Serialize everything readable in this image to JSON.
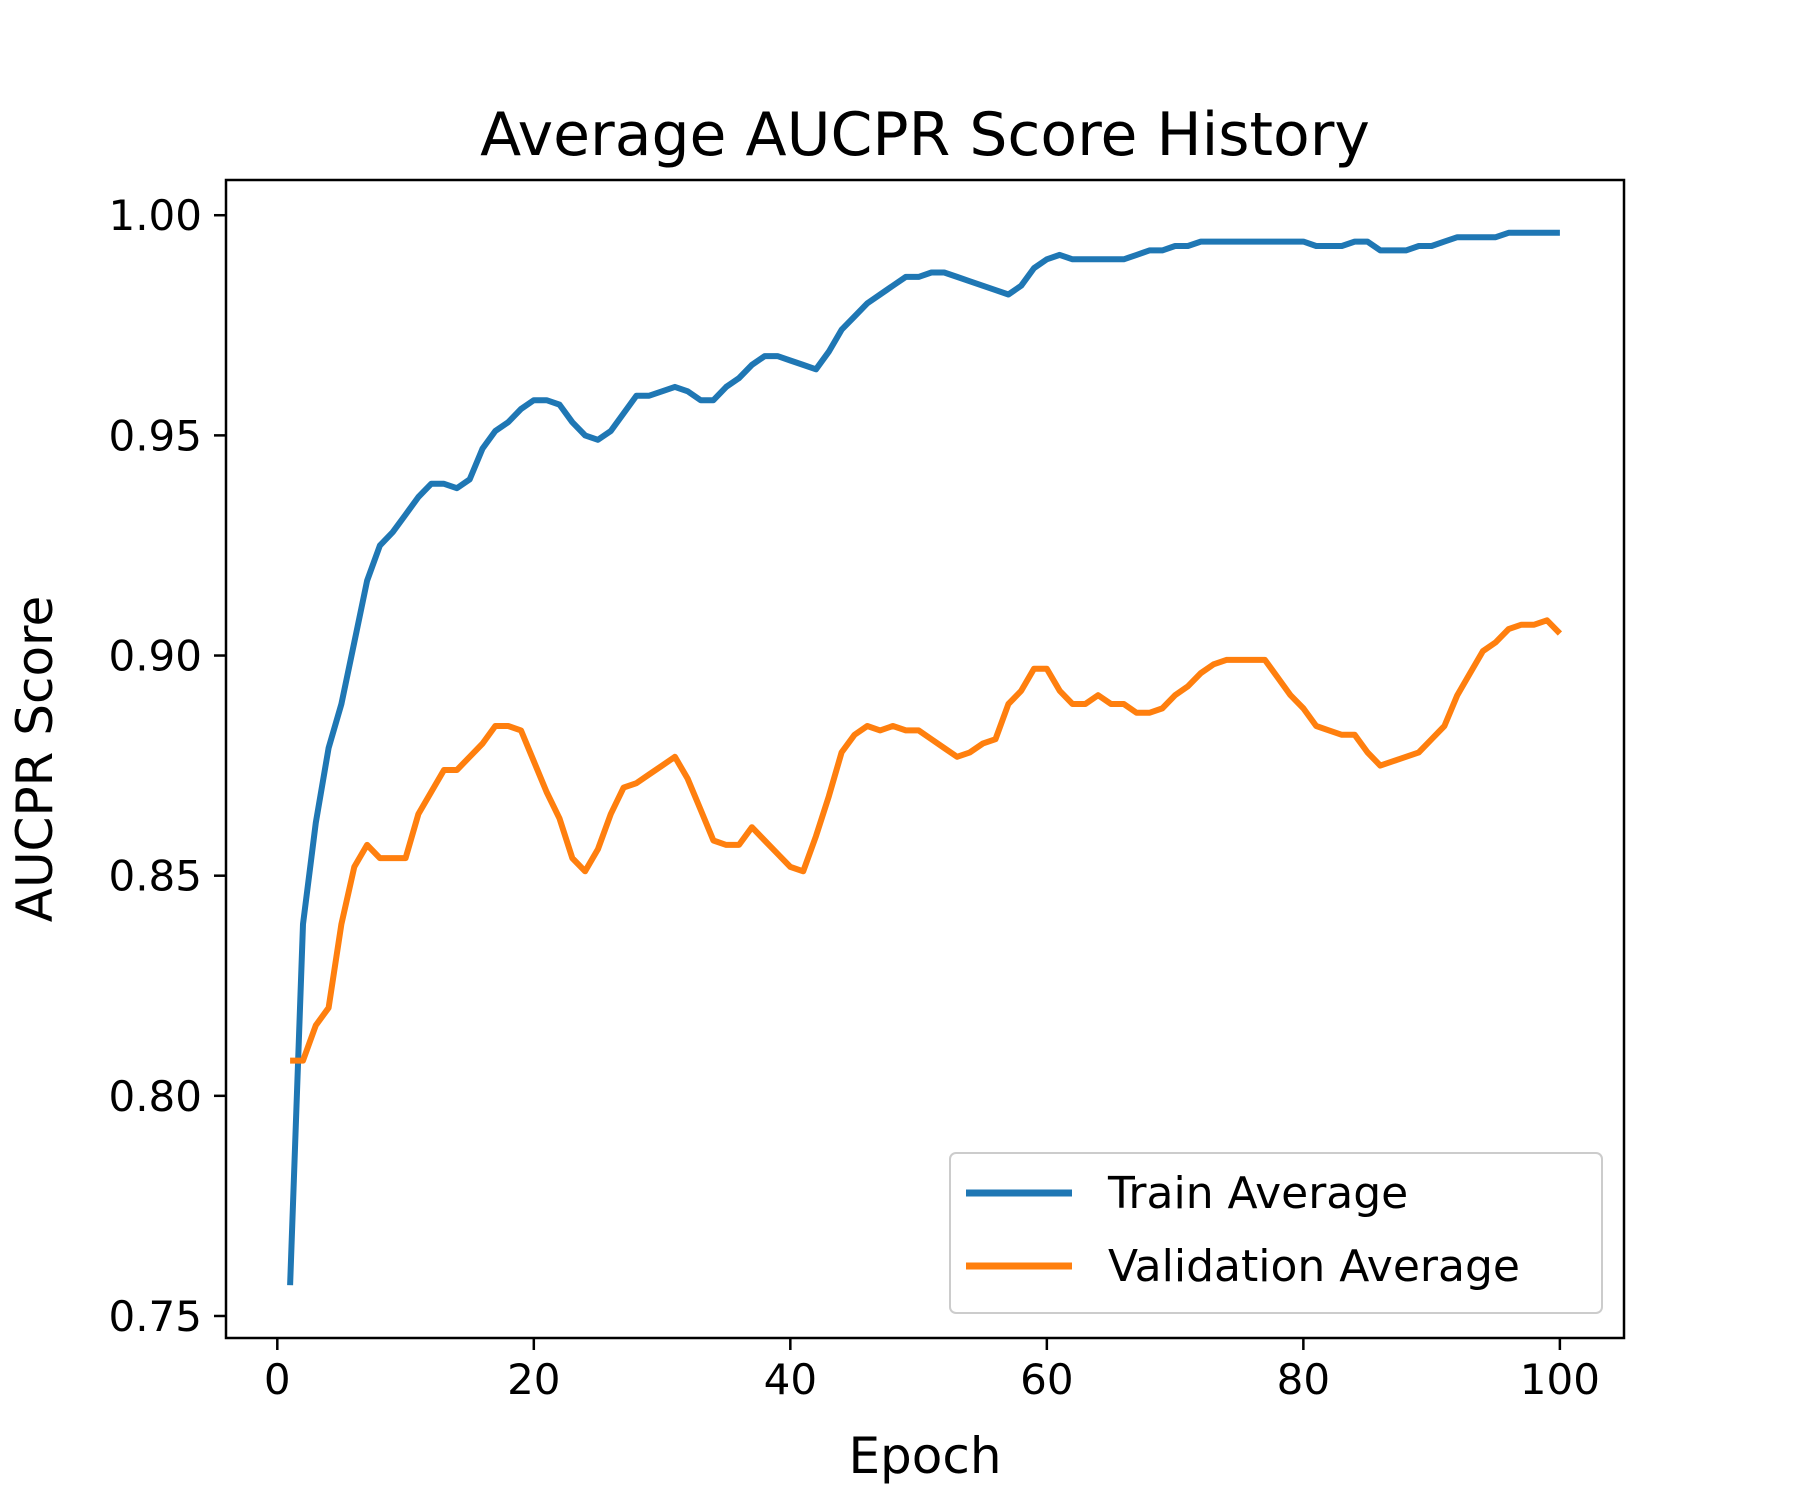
{
  "chart_data": {
    "type": "line",
    "title": "Average AUCPR Score History",
    "xlabel": "Epoch",
    "ylabel": "AUCPR Score",
    "xlim": [
      -4,
      105
    ],
    "ylim": [
      0.745,
      1.008
    ],
    "xticks": [
      0,
      20,
      40,
      60,
      80,
      100
    ],
    "yticks": [
      0.75,
      0.8,
      0.85,
      0.9,
      0.95,
      1.0
    ],
    "xtick_labels": [
      "0",
      "20",
      "40",
      "60",
      "80",
      "100"
    ],
    "ytick_labels": [
      "0.75",
      "0.80",
      "0.85",
      "0.90",
      "0.95",
      "1.00"
    ],
    "grid": false,
    "legend_position": "lower-right",
    "series": [
      {
        "name": "Train Average",
        "color": "#1f77b4",
        "x": [
          1,
          2,
          3,
          4,
          5,
          6,
          7,
          8,
          9,
          10,
          11,
          12,
          13,
          14,
          15,
          16,
          17,
          18,
          19,
          20,
          21,
          22,
          23,
          24,
          25,
          26,
          27,
          28,
          29,
          30,
          31,
          32,
          33,
          34,
          35,
          36,
          37,
          38,
          39,
          40,
          41,
          42,
          43,
          44,
          45,
          46,
          47,
          48,
          49,
          50,
          51,
          52,
          53,
          54,
          55,
          56,
          57,
          58,
          59,
          60,
          61,
          62,
          63,
          64,
          65,
          66,
          67,
          68,
          69,
          70,
          71,
          72,
          73,
          74,
          75,
          76,
          77,
          78,
          79,
          80,
          81,
          82,
          83,
          84,
          85,
          86,
          87,
          88,
          89,
          90,
          91,
          92,
          93,
          94,
          95,
          96,
          97,
          98,
          99,
          100
        ],
        "values": [
          0.757,
          0.839,
          0.862,
          0.879,
          0.889,
          0.903,
          0.917,
          0.925,
          0.928,
          0.932,
          0.936,
          0.939,
          0.939,
          0.938,
          0.94,
          0.947,
          0.951,
          0.953,
          0.956,
          0.958,
          0.958,
          0.957,
          0.953,
          0.95,
          0.949,
          0.951,
          0.955,
          0.959,
          0.959,
          0.96,
          0.961,
          0.96,
          0.958,
          0.958,
          0.961,
          0.963,
          0.966,
          0.968,
          0.968,
          0.967,
          0.966,
          0.965,
          0.969,
          0.974,
          0.977,
          0.98,
          0.982,
          0.984,
          0.986,
          0.986,
          0.987,
          0.987,
          0.986,
          0.985,
          0.984,
          0.983,
          0.982,
          0.984,
          0.988,
          0.99,
          0.991,
          0.99,
          0.99,
          0.99,
          0.99,
          0.99,
          0.991,
          0.992,
          0.992,
          0.993,
          0.993,
          0.994,
          0.994,
          0.994,
          0.994,
          0.994,
          0.994,
          0.994,
          0.994,
          0.994,
          0.993,
          0.993,
          0.993,
          0.994,
          0.994,
          0.992,
          0.992,
          0.992,
          0.993,
          0.993,
          0.994,
          0.995,
          0.995,
          0.995,
          0.995,
          0.996,
          0.996,
          0.996,
          0.996,
          0.996
        ]
      },
      {
        "name": "Validation Average",
        "color": "#ff7f0e",
        "x": [
          1,
          2,
          3,
          4,
          5,
          6,
          7,
          8,
          9,
          10,
          11,
          12,
          13,
          14,
          15,
          16,
          17,
          18,
          19,
          20,
          21,
          22,
          23,
          24,
          25,
          26,
          27,
          28,
          29,
          30,
          31,
          32,
          33,
          34,
          35,
          36,
          37,
          38,
          39,
          40,
          41,
          42,
          43,
          44,
          45,
          46,
          47,
          48,
          49,
          50,
          51,
          52,
          53,
          54,
          55,
          56,
          57,
          58,
          59,
          60,
          61,
          62,
          63,
          64,
          65,
          66,
          67,
          68,
          69,
          70,
          71,
          72,
          73,
          74,
          75,
          76,
          77,
          78,
          79,
          80,
          81,
          82,
          83,
          84,
          85,
          86,
          87,
          88,
          89,
          90,
          91,
          92,
          93,
          94,
          95,
          96,
          97,
          98,
          99,
          100
        ],
        "values": [
          0.808,
          0.808,
          0.816,
          0.82,
          0.839,
          0.852,
          0.857,
          0.854,
          0.854,
          0.854,
          0.864,
          0.869,
          0.874,
          0.874,
          0.877,
          0.88,
          0.884,
          0.884,
          0.883,
          0.876,
          0.869,
          0.863,
          0.854,
          0.851,
          0.856,
          0.864,
          0.87,
          0.871,
          0.873,
          0.875,
          0.877,
          0.872,
          0.865,
          0.858,
          0.857,
          0.857,
          0.861,
          0.858,
          0.855,
          0.852,
          0.851,
          0.859,
          0.868,
          0.878,
          0.882,
          0.884,
          0.883,
          0.884,
          0.883,
          0.883,
          0.881,
          0.879,
          0.877,
          0.878,
          0.88,
          0.881,
          0.889,
          0.892,
          0.897,
          0.897,
          0.892,
          0.889,
          0.889,
          0.891,
          0.889,
          0.889,
          0.887,
          0.887,
          0.888,
          0.891,
          0.893,
          0.896,
          0.898,
          0.899,
          0.899,
          0.899,
          0.899,
          0.895,
          0.891,
          0.888,
          0.884,
          0.883,
          0.882,
          0.882,
          0.878,
          0.875,
          0.876,
          0.877,
          0.878,
          0.881,
          0.884,
          0.891,
          0.896,
          0.901,
          0.903,
          0.906,
          0.907,
          0.907,
          0.908,
          0.905
        ]
      }
    ]
  }
}
